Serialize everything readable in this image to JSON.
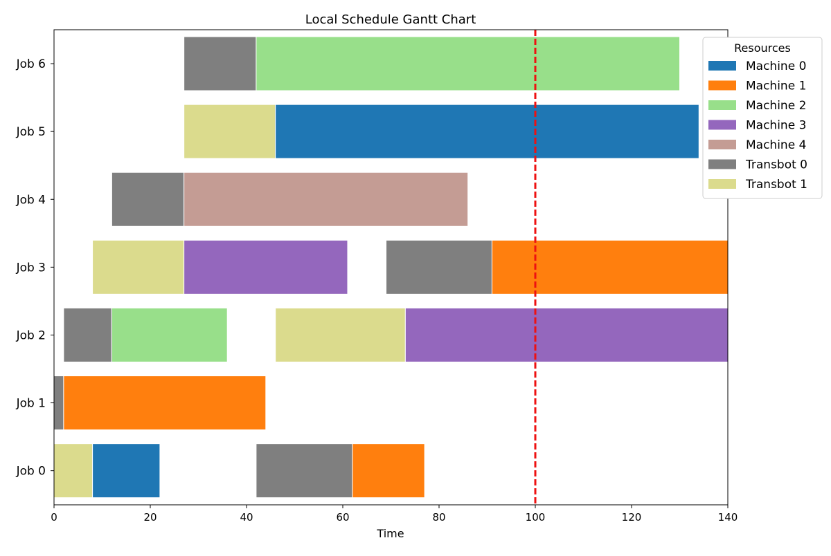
{
  "chart_data": {
    "type": "gantt",
    "title": "Local Schedule Gantt Chart",
    "xlabel": "Time",
    "ylabel": "",
    "xlim": [
      0,
      140
    ],
    "xticks": [
      0,
      20,
      40,
      60,
      80,
      100,
      120,
      140
    ],
    "jobs": [
      "Job 0",
      "Job 1",
      "Job 2",
      "Job 3",
      "Job 4",
      "Job 5",
      "Job 6"
    ],
    "resources": [
      {
        "name": "Machine 0",
        "color": "#1f77b4"
      },
      {
        "name": "Machine 1",
        "color": "#ff7f0e"
      },
      {
        "name": "Machine 2",
        "color": "#98df8a"
      },
      {
        "name": "Machine 3",
        "color": "#9467bd"
      },
      {
        "name": "Machine 4",
        "color": "#c49c94"
      },
      {
        "name": "Transbot 0",
        "color": "#7f7f7f"
      },
      {
        "name": "Transbot 1",
        "color": "#dbdb8d"
      }
    ],
    "legend_title": "Resources",
    "legend_position": "upper-right-outside",
    "tasks": [
      {
        "job": "Job 0",
        "resource": "Transbot 1",
        "start": 0,
        "end": 8
      },
      {
        "job": "Job 0",
        "resource": "Machine 0",
        "start": 8,
        "end": 22
      },
      {
        "job": "Job 0",
        "resource": "Transbot 0",
        "start": 42,
        "end": 62
      },
      {
        "job": "Job 0",
        "resource": "Machine 1",
        "start": 62,
        "end": 77
      },
      {
        "job": "Job 1",
        "resource": "Transbot 0",
        "start": 0,
        "end": 2
      },
      {
        "job": "Job 1",
        "resource": "Machine 1",
        "start": 2,
        "end": 44
      },
      {
        "job": "Job 2",
        "resource": "Transbot 0",
        "start": 2,
        "end": 12
      },
      {
        "job": "Job 2",
        "resource": "Machine 2",
        "start": 12,
        "end": 36
      },
      {
        "job": "Job 2",
        "resource": "Transbot 1",
        "start": 46,
        "end": 73
      },
      {
        "job": "Job 2",
        "resource": "Machine 3",
        "start": 73,
        "end": 140
      },
      {
        "job": "Job 3",
        "resource": "Transbot 1",
        "start": 8,
        "end": 27
      },
      {
        "job": "Job 3",
        "resource": "Machine 3",
        "start": 27,
        "end": 61
      },
      {
        "job": "Job 3",
        "resource": "Transbot 0",
        "start": 69,
        "end": 91
      },
      {
        "job": "Job 3",
        "resource": "Machine 1",
        "start": 91,
        "end": 140
      },
      {
        "job": "Job 4",
        "resource": "Transbot 0",
        "start": 12,
        "end": 27
      },
      {
        "job": "Job 4",
        "resource": "Machine 4",
        "start": 27,
        "end": 86
      },
      {
        "job": "Job 5",
        "resource": "Transbot 1",
        "start": 27,
        "end": 46
      },
      {
        "job": "Job 5",
        "resource": "Machine 0",
        "start": 46,
        "end": 134
      },
      {
        "job": "Job 6",
        "resource": "Transbot 0",
        "start": 27,
        "end": 42
      },
      {
        "job": "Job 6",
        "resource": "Machine 2",
        "start": 42,
        "end": 130
      }
    ],
    "current_time_marker": {
      "value": 100,
      "color": "#ee1111",
      "style": "dashed"
    }
  }
}
